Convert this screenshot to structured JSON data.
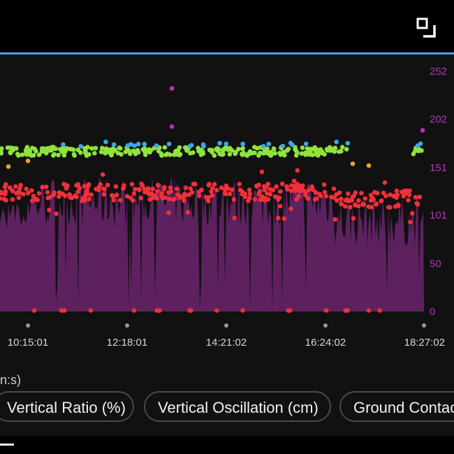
{
  "toolbar": {
    "expand_icon": "expand-icon"
  },
  "chart_data": {
    "type": "scatter",
    "x_tick_labels": [
      "10:15:01",
      "12:18:01",
      "14:21:02",
      "16:24:02",
      "18:27:02"
    ],
    "y_right_tick_labels": [
      "252",
      "202",
      "151",
      "101",
      "50",
      "0"
    ],
    "ylim": [
      0,
      252
    ],
    "grid": false,
    "series": [
      {
        "kind": "area",
        "color": "#5e2160",
        "typical_range": [
          70,
          150
        ]
      },
      {
        "kind": "dots",
        "color": "#f0303a",
        "typical_range": [
          110,
          135
        ]
      },
      {
        "kind": "dots",
        "color": "#8fe33c",
        "typical_range": [
          165,
          175
        ]
      },
      {
        "kind": "dots",
        "color": "#3aa8e8",
        "typical_range": [
          170,
          178
        ]
      },
      {
        "kind": "dots",
        "color": "#f0a030",
        "typical_range": [
          150,
          165
        ]
      },
      {
        "kind": "dots",
        "color": "#c02bc8",
        "outliers": [
          234,
          194,
          190
        ]
      }
    ]
  },
  "axis_unit_label": "n:s)",
  "chips": [
    {
      "label": "Vertical Ratio (%)"
    },
    {
      "label": "Vertical Oscillation (cm)"
    },
    {
      "label": "Ground Contac"
    }
  ],
  "colors": {
    "accent": "#4f9fe6",
    "background": "#111111",
    "axis_purple": "#b436b8"
  }
}
